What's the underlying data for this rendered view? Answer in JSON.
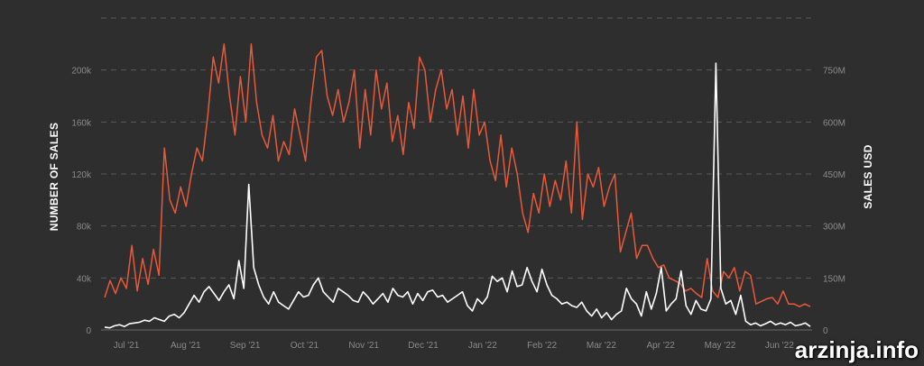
{
  "chart_data": {
    "type": "line",
    "title": "",
    "ylabel_left": "NUMBER OF SALES",
    "ylabel_right": "SALES USD",
    "xlabel": "",
    "left_ticks": [
      "0",
      "40k",
      "80k",
      "120k",
      "160k",
      "200k"
    ],
    "right_ticks": [
      "0",
      "150M",
      "300M",
      "450M",
      "600M",
      "750M"
    ],
    "ylim_left": [
      0,
      240000
    ],
    "ylim_right": [
      0,
      900000000
    ],
    "x_ticks": [
      "Jul '21",
      "Aug '21",
      "Sep '21",
      "Oct '21",
      "Nov '21",
      "Dec '21",
      "Jan '22",
      "Feb '22",
      "Mar '22",
      "Apr '22",
      "May '22",
      "Jun '22"
    ],
    "grid": true,
    "colors": {
      "number_of_sales": "#e8593a",
      "sales_usd": "#ffffff",
      "background": "#2e2e2e",
      "grid": "#5a5a5a"
    },
    "series": [
      {
        "axis": "left",
        "color": "#e8593a",
        "values": [
          25000,
          38000,
          28000,
          40000,
          32000,
          65000,
          30000,
          55000,
          35000,
          62000,
          42000,
          140000,
          100000,
          90000,
          110000,
          95000,
          120000,
          140000,
          130000,
          165000,
          210000,
          190000,
          220000,
          180000,
          150000,
          195000,
          160000,
          220000,
          175000,
          150000,
          140000,
          165000,
          130000,
          145000,
          135000,
          170000,
          150000,
          130000,
          175000,
          210000,
          215000,
          180000,
          165000,
          185000,
          160000,
          175000,
          200000,
          140000,
          185000,
          150000,
          200000,
          170000,
          190000,
          145000,
          165000,
          135000,
          175000,
          155000,
          210000,
          200000,
          160000,
          185000,
          200000,
          170000,
          185000,
          150000,
          180000,
          140000,
          185000,
          150000,
          160000,
          130000,
          115000,
          150000,
          110000,
          140000,
          120000,
          90000,
          75000,
          105000,
          90000,
          120000,
          95000,
          115000,
          100000,
          130000,
          90000,
          160000,
          85000,
          120000,
          110000,
          125000,
          95000,
          110000,
          120000,
          60000,
          75000,
          90000,
          55000,
          65000,
          65000,
          55000,
          48000,
          50000,
          40000,
          38000,
          36000,
          30000,
          32000,
          28000,
          25000,
          55000,
          30000,
          25000,
          45000,
          40000,
          48000,
          30000,
          45000,
          42000,
          20000,
          22000,
          24000,
          25000,
          20000,
          30000,
          20000,
          20000,
          18000,
          20000,
          18000
        ]
      },
      {
        "axis": "right",
        "color": "#ffffff",
        "values": [
          8000000,
          6000000,
          12000000,
          15000000,
          10000000,
          18000000,
          20000000,
          22000000,
          28000000,
          25000000,
          35000000,
          30000000,
          25000000,
          40000000,
          45000000,
          35000000,
          50000000,
          75000000,
          100000000,
          80000000,
          110000000,
          125000000,
          105000000,
          85000000,
          110000000,
          130000000,
          90000000,
          200000000,
          120000000,
          420000000,
          180000000,
          130000000,
          95000000,
          75000000,
          110000000,
          80000000,
          70000000,
          60000000,
          85000000,
          110000000,
          95000000,
          100000000,
          130000000,
          150000000,
          110000000,
          95000000,
          80000000,
          120000000,
          110000000,
          100000000,
          85000000,
          80000000,
          110000000,
          95000000,
          75000000,
          90000000,
          105000000,
          80000000,
          120000000,
          100000000,
          95000000,
          110000000,
          75000000,
          105000000,
          85000000,
          110000000,
          115000000,
          95000000,
          100000000,
          80000000,
          90000000,
          100000000,
          110000000,
          70000000,
          55000000,
          90000000,
          75000000,
          95000000,
          155000000,
          140000000,
          150000000,
          110000000,
          170000000,
          125000000,
          130000000,
          180000000,
          140000000,
          110000000,
          175000000,
          130000000,
          100000000,
          90000000,
          75000000,
          80000000,
          70000000,
          65000000,
          80000000,
          55000000,
          40000000,
          60000000,
          35000000,
          50000000,
          30000000,
          45000000,
          55000000,
          120000000,
          90000000,
          75000000,
          40000000,
          110000000,
          60000000,
          105000000,
          180000000,
          55000000,
          75000000,
          90000000,
          170000000,
          70000000,
          45000000,
          85000000,
          60000000,
          55000000,
          90000000,
          770000000,
          120000000,
          75000000,
          85000000,
          45000000,
          100000000,
          25000000,
          15000000,
          20000000,
          12000000,
          18000000,
          25000000,
          15000000,
          20000000,
          15000000,
          22000000,
          12000000,
          15000000,
          20000000,
          10000000
        ]
      }
    ]
  },
  "watermark": "arzinja.info"
}
